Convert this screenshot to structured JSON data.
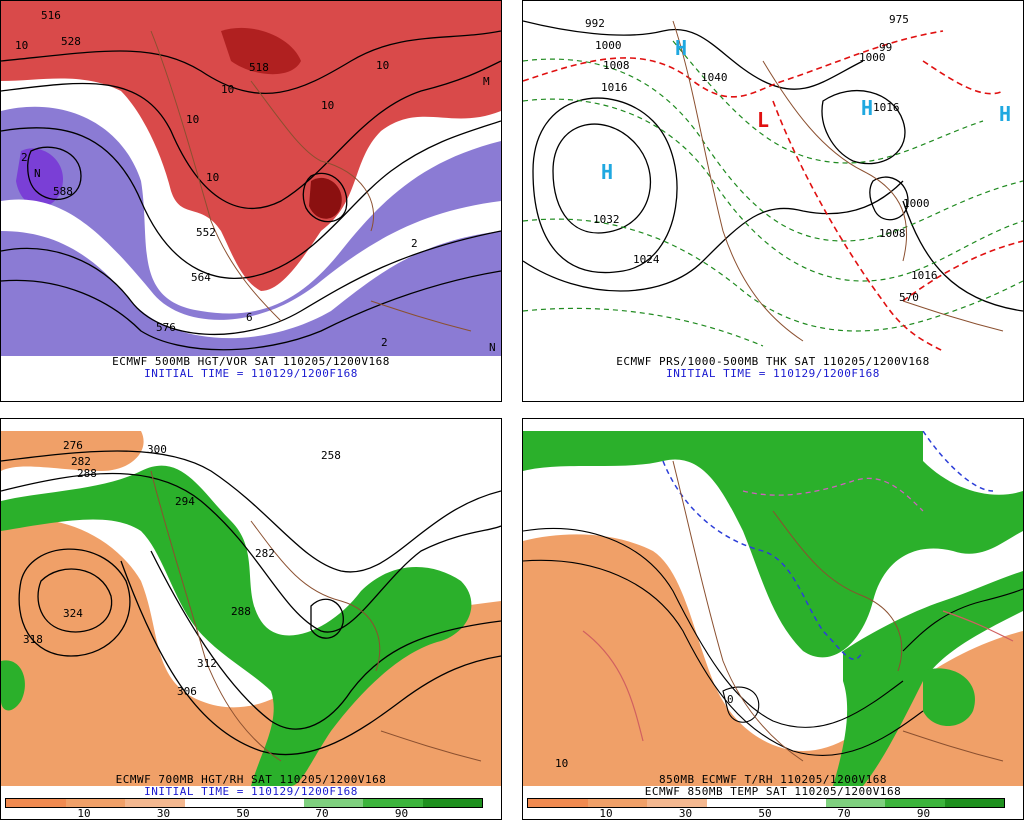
{
  "panels": [
    {
      "caption1": "ECMWF 500MB HGT/VOR SAT 110205/1200V168",
      "caption2": "INITIAL TIME = 110129/1200F168",
      "labels": [
        "516",
        "528",
        "10",
        "518",
        "10",
        "10",
        "10",
        "10",
        "10",
        "588",
        "552",
        "564",
        "576",
        "6",
        "2",
        "2",
        "2",
        "N",
        "N",
        "M"
      ]
    },
    {
      "caption1": "ECMWF PRS/1000-500MB THK SAT 110205/1200V168",
      "caption2": "INITIAL TIME = 110129/1200F168",
      "labels": [
        "992",
        "1000",
        "1008",
        "1016",
        "1040",
        "1032",
        "1024",
        "1016",
        "1000",
        "1008",
        "975",
        "99",
        "1000",
        "1016",
        "570"
      ],
      "highs": [
        "H",
        "H",
        "H",
        "H"
      ],
      "lows": [
        "L"
      ]
    },
    {
      "caption1": "ECMWF 700MB HGT/RH SAT 110205/1200V168",
      "caption2": "INITIAL TIME = 110129/1200F168",
      "labels": [
        "276",
        "282",
        "288",
        "300",
        "294",
        "258",
        "282",
        "288",
        "324",
        "318",
        "306",
        "312"
      ],
      "colorbar_ticks": [
        "10",
        "30",
        "50",
        "70",
        "90"
      ]
    },
    {
      "caption1": "850MB ECMWF T/RH 110205/1200V168",
      "caption2": "ECMWF 850MB TEMP SAT 110205/1200V168",
      "labels": [
        "0",
        "10"
      ],
      "colorbar_ticks": [
        "10",
        "30",
        "50",
        "70",
        "90"
      ]
    }
  ],
  "colors": {
    "vort_red": "#d94a4a",
    "vort_dark": "#8b1010",
    "vort_purple": "#8b7bd4",
    "vort_purple_dark": "#7a3fd6",
    "rh_orange": "#f0a068",
    "rh_green": "#2bb02b",
    "high_cyan": "#1fa8e0",
    "low_red": "#e01010",
    "land_brown": "#8b5030"
  },
  "colorbar_colors": [
    "#f08a50",
    "#f0a068",
    "#f4b890",
    "#ffffff",
    "#ffffff",
    "#7fd07f",
    "#3cb43c",
    "#1e901e"
  ]
}
